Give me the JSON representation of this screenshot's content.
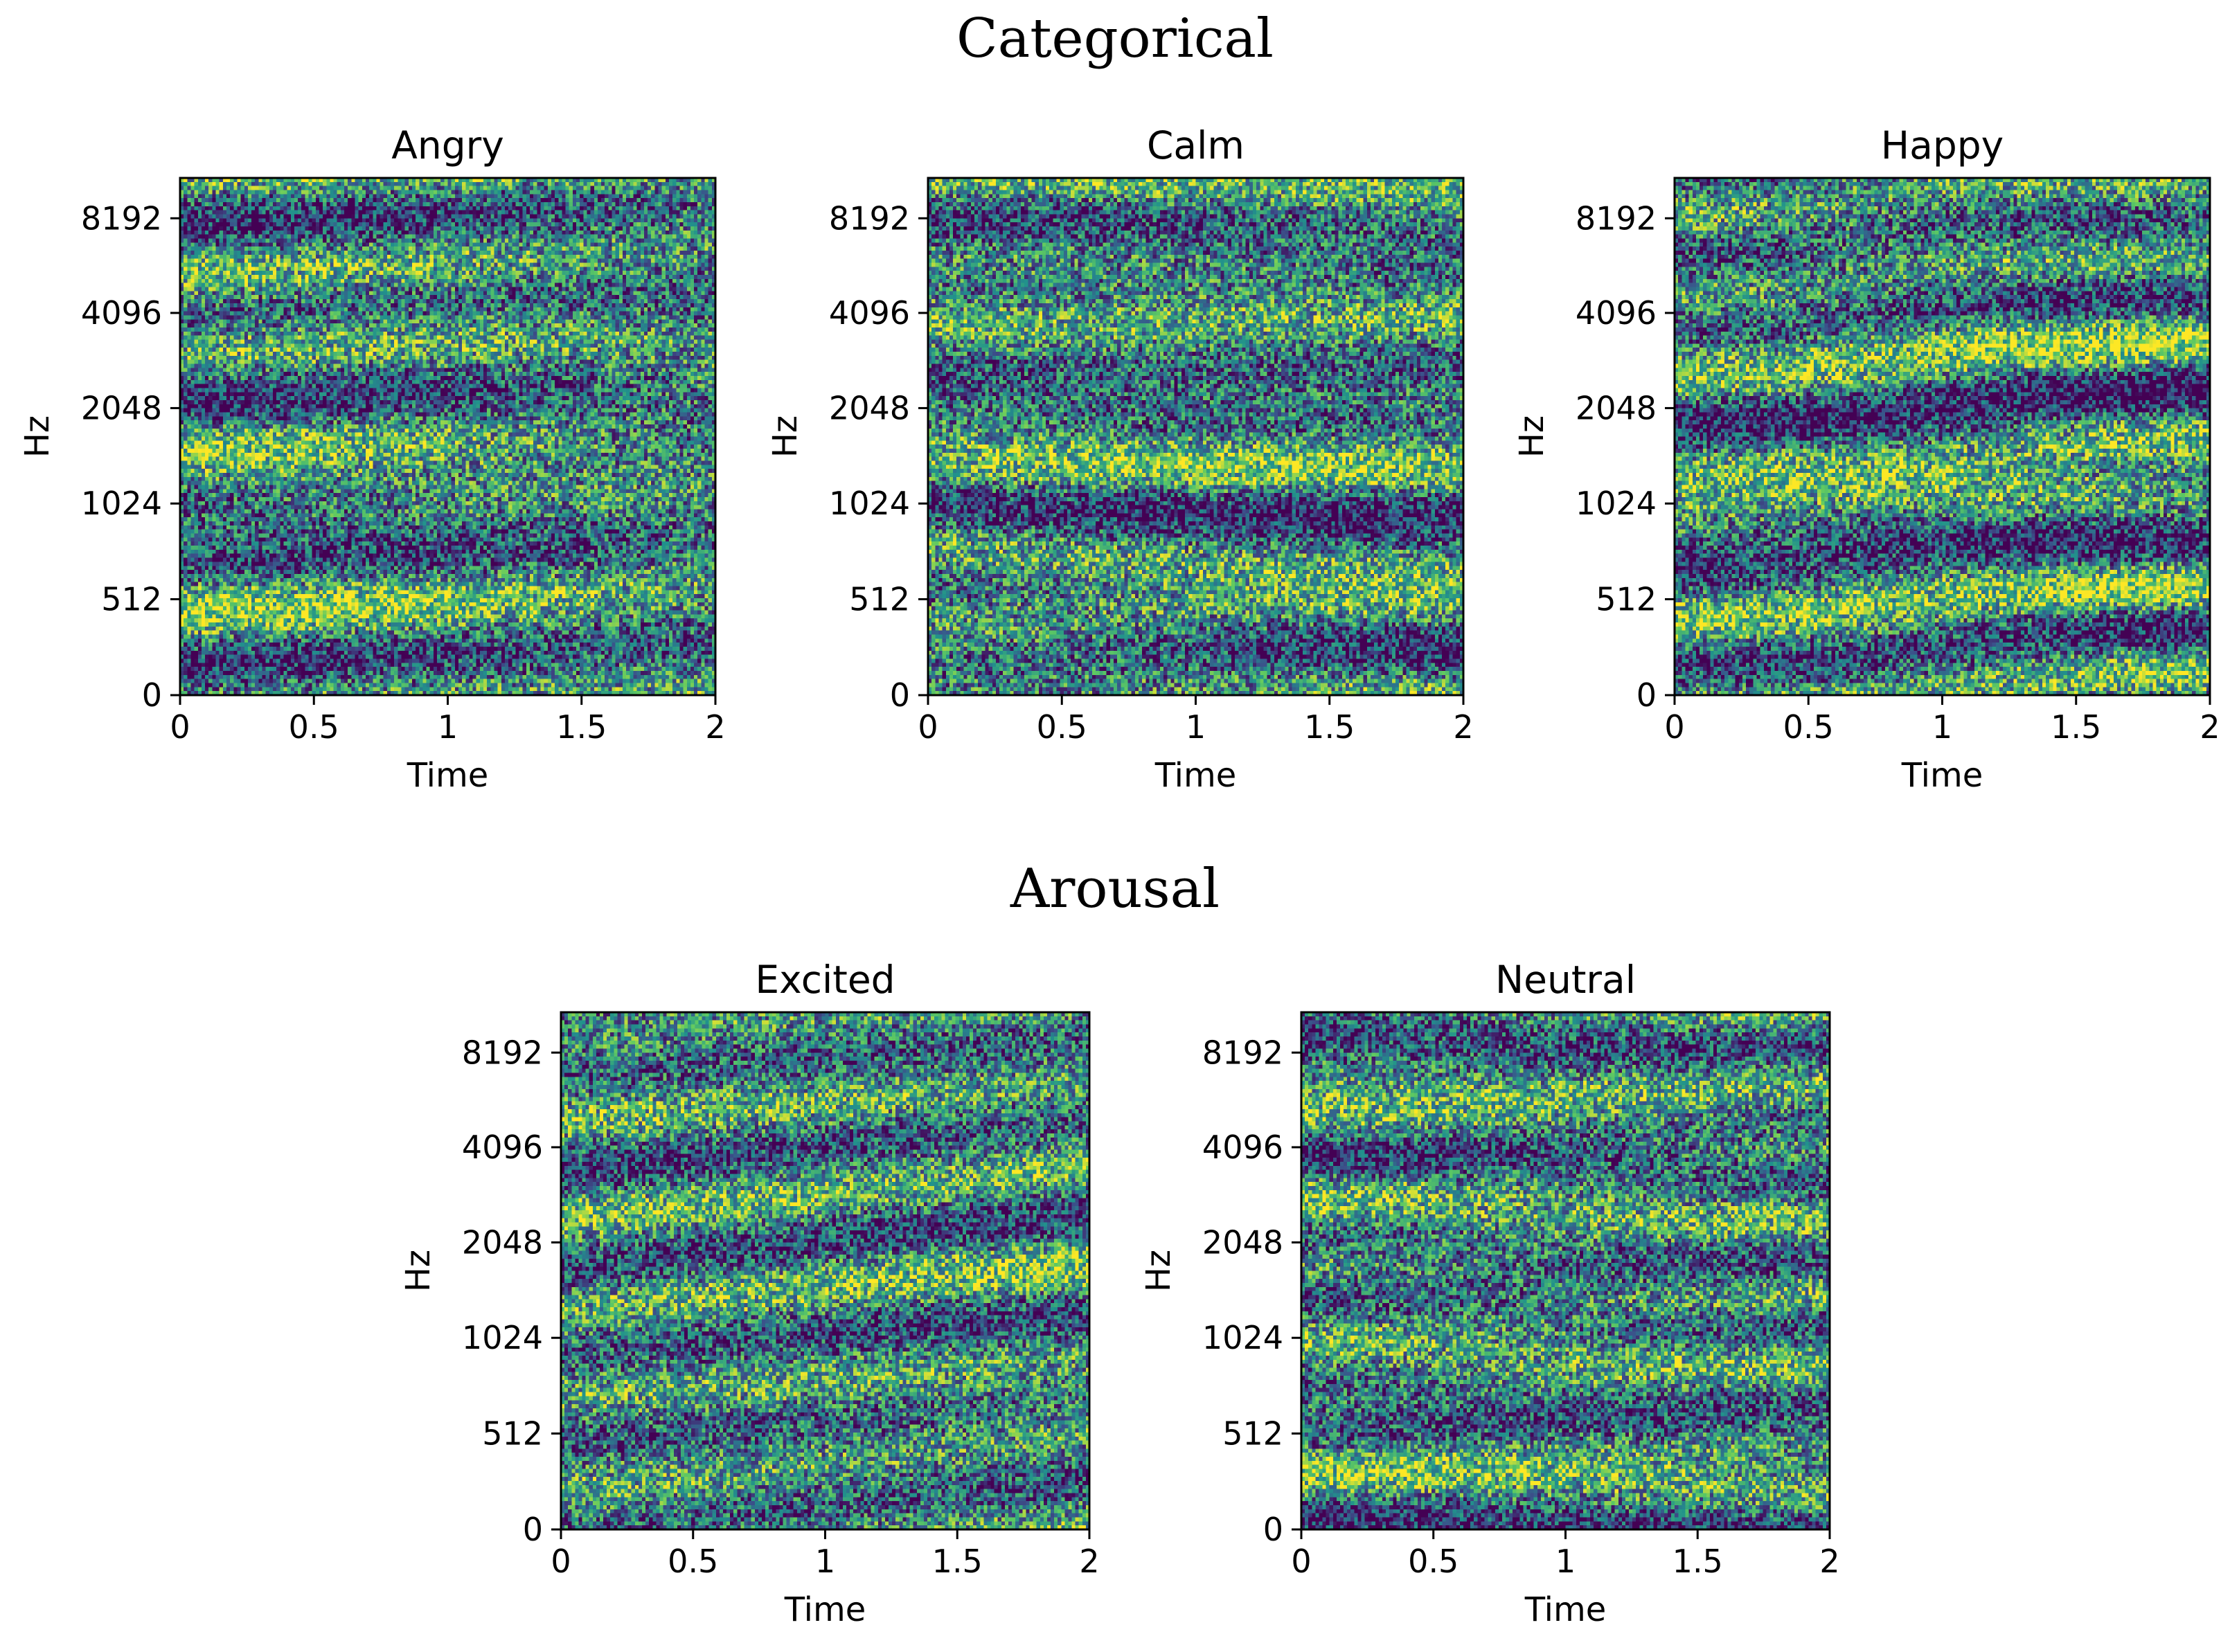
{
  "figure": {
    "sections": [
      {
        "title": "Categorical"
      },
      {
        "title": "Arousal"
      }
    ]
  },
  "chart_data": [
    {
      "type": "heatmap",
      "section": "Categorical",
      "title": "Angry",
      "xlabel": "Time",
      "ylabel": "Hz",
      "xlim": [
        0,
        2
      ],
      "x_ticks": [
        "0",
        "0.5",
        "1",
        "1.5",
        "2"
      ],
      "y_scale": "mel",
      "y_ticks": [
        "0",
        "512",
        "1024",
        "2048",
        "4096",
        "8192"
      ],
      "colormap": "viridis",
      "colors": [
        "#440154",
        "#3b528b",
        "#21918c",
        "#5ec962",
        "#fde725"
      ],
      "grid": false,
      "legend": "none",
      "seed": 11
    },
    {
      "type": "heatmap",
      "section": "Categorical",
      "title": "Calm",
      "xlabel": "Time",
      "ylabel": "Hz",
      "xlim": [
        0,
        2
      ],
      "x_ticks": [
        "0",
        "0.5",
        "1",
        "1.5",
        "2"
      ],
      "y_scale": "mel",
      "y_ticks": [
        "0",
        "512",
        "1024",
        "2048",
        "4096",
        "8192"
      ],
      "colormap": "viridis",
      "colors": [
        "#440154",
        "#3b528b",
        "#21918c",
        "#5ec962",
        "#fde725"
      ],
      "grid": false,
      "legend": "none",
      "seed": 23
    },
    {
      "type": "heatmap",
      "section": "Categorical",
      "title": "Happy",
      "xlabel": "Time",
      "ylabel": "Hz",
      "xlim": [
        0,
        2
      ],
      "x_ticks": [
        "0",
        "0.5",
        "1",
        "1.5",
        "2"
      ],
      "y_scale": "mel",
      "y_ticks": [
        "0",
        "512",
        "1024",
        "2048",
        "4096",
        "8192"
      ],
      "colormap": "viridis",
      "colors": [
        "#440154",
        "#3b528b",
        "#21918c",
        "#5ec962",
        "#fde725"
      ],
      "grid": false,
      "legend": "none",
      "seed": 37
    },
    {
      "type": "heatmap",
      "section": "Arousal",
      "title": "Excited",
      "xlabel": "Time",
      "ylabel": "Hz",
      "xlim": [
        0,
        2
      ],
      "x_ticks": [
        "0",
        "0.5",
        "1",
        "1.5",
        "2"
      ],
      "y_scale": "mel",
      "y_ticks": [
        "0",
        "512",
        "1024",
        "2048",
        "4096",
        "8192"
      ],
      "colormap": "viridis",
      "colors": [
        "#440154",
        "#3b528b",
        "#21918c",
        "#5ec962",
        "#fde725"
      ],
      "grid": false,
      "legend": "none",
      "seed": 53
    },
    {
      "type": "heatmap",
      "section": "Arousal",
      "title": "Neutral",
      "xlabel": "Time",
      "ylabel": "Hz",
      "xlim": [
        0,
        2
      ],
      "x_ticks": [
        "0",
        "0.5",
        "1",
        "1.5",
        "2"
      ],
      "y_scale": "mel",
      "y_ticks": [
        "0",
        "512",
        "1024",
        "2048",
        "4096",
        "8192"
      ],
      "colormap": "viridis",
      "colors": [
        "#440154",
        "#3b528b",
        "#21918c",
        "#5ec962",
        "#fde725"
      ],
      "grid": false,
      "legend": "none",
      "seed": 71
    }
  ]
}
